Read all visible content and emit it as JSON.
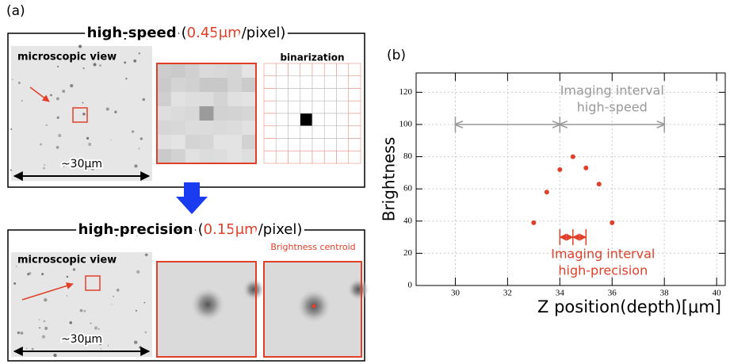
{
  "panel_a": {
    "label": "(a)",
    "top": {
      "title": "high-speed",
      "open": "(",
      "scale": "0.45",
      "unit": "μm",
      "close": "/pixel)",
      "view_label": "microscopic view",
      "bin_label": "binarization",
      "scale_bar": "~30μm"
    },
    "bottom": {
      "title": "high-precision",
      "open": "(",
      "scale": "0.15",
      "unit": "μm",
      "close": "/pixel)",
      "view_label": "microscopic view",
      "centroid_label": "Brightness centroid",
      "scale_bar": "~30μm"
    }
  },
  "chart_data": {
    "type": "scatter",
    "panel_label": "(b)",
    "x_label": "Z position(depth)[μm]",
    "y_label": "Brightness",
    "x": [
      33,
      33.5,
      34,
      34.5,
      35,
      35.5,
      36
    ],
    "values": [
      39,
      58,
      72,
      80,
      73,
      63,
      39
    ],
    "color": "#e0402a",
    "xlim": [
      28.5,
      40.33
    ],
    "ylim": [
      0,
      132
    ],
    "xticks": [
      30,
      32,
      34,
      36,
      38,
      40
    ],
    "yticks": [
      0,
      20,
      40,
      60,
      80,
      100,
      120
    ],
    "grid": true,
    "annotations": [
      {
        "lines": [
          "Imaging interval",
          "high-speed"
        ],
        "color": "#999999",
        "y": 100,
        "x": [
          30,
          34,
          38
        ]
      },
      {
        "lines": [
          "Imaging interval",
          "high-precision"
        ],
        "color": "#e0402a",
        "y": 30,
        "x": [
          34,
          34.5,
          35
        ]
      }
    ]
  }
}
